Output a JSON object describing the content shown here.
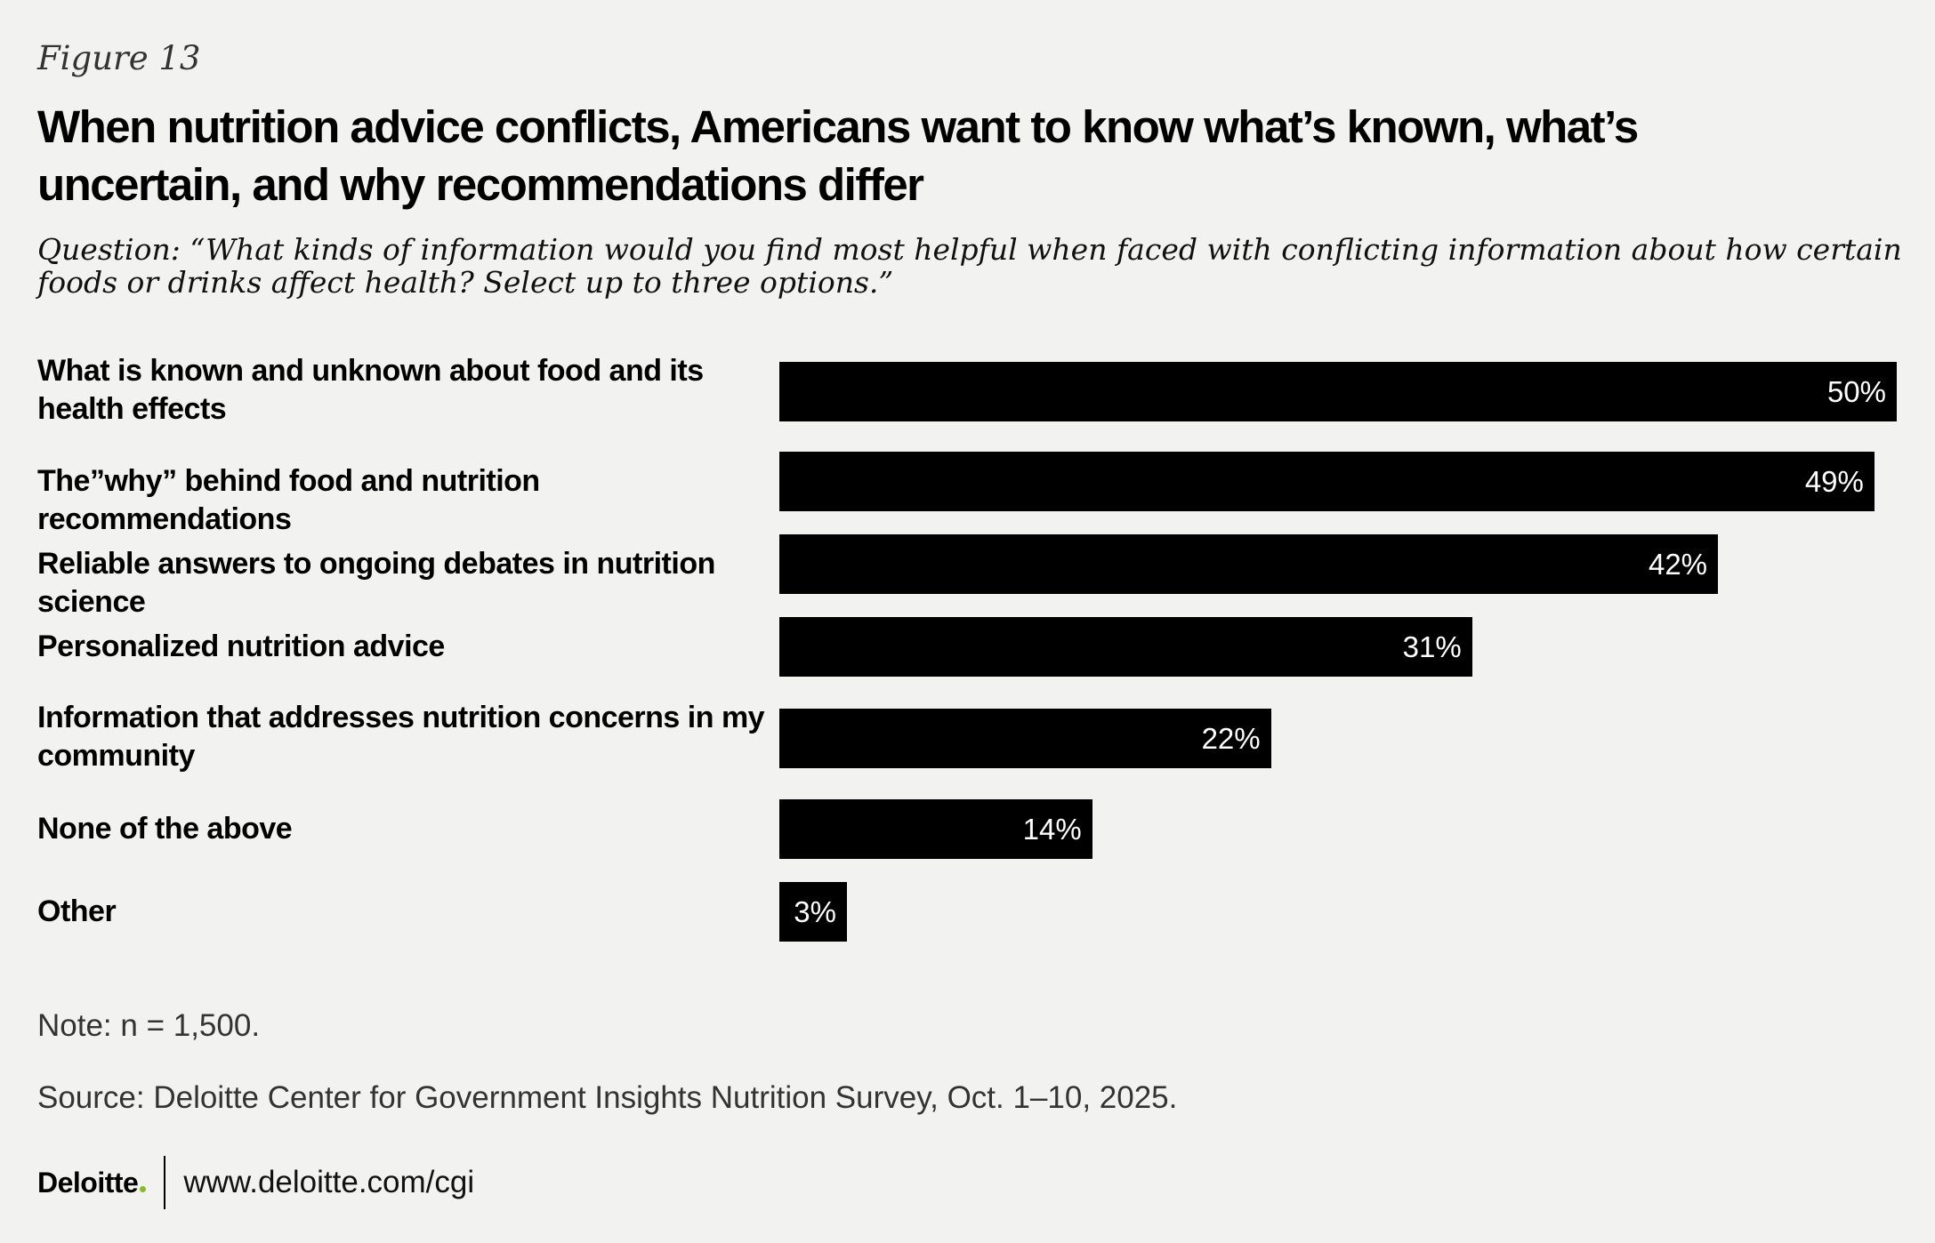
{
  "figure_label": "Figure 13",
  "title": "When nutrition advice conflicts, Americans want to know what’s known, what’s uncertain, and why recommendations differ",
  "question": "Question: “What kinds of information would you find most helpful when faced with conflicting information about how certain foods or drinks affect health? Select up to three options.”",
  "chart_data": {
    "type": "bar",
    "orientation": "horizontal",
    "categories": [
      "What is known and unknown about food and its health effects",
      "The”why” behind food and nutrition recommendations",
      "Reliable answers to ongoing debates in nutrition science",
      "Personalized nutrition advice",
      "Information that addresses nutrition concerns in my community",
      "None of the above",
      "Other"
    ],
    "values": [
      50,
      49,
      42,
      31,
      22,
      14,
      3
    ],
    "value_labels": [
      "50%",
      "49%",
      "42%",
      "31%",
      "22%",
      "14%",
      "3%"
    ],
    "xlim": [
      0,
      50
    ],
    "bar_color": "#000000",
    "value_label_color": "#ffffff"
  },
  "note": "Note: n = 1,500.",
  "source": "Source: Deloitte Center for Government Insights Nutrition Survey, Oct. 1–10, 2025.",
  "footer": {
    "logo_text": "Deloitte",
    "logo_dot_color": "#86bc25",
    "url": "www.deloitte.com/cgi"
  }
}
